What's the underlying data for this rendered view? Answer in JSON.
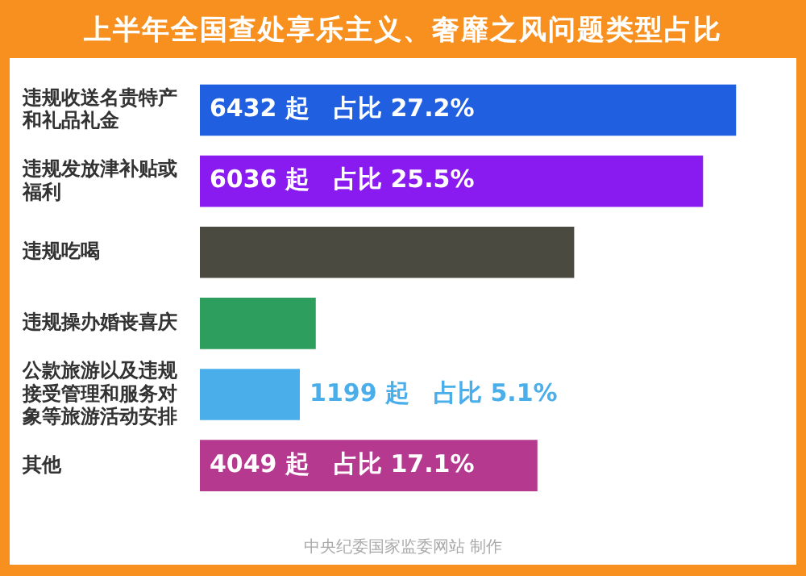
{
  "chart_data": {
    "type": "bar",
    "orientation": "horizontal",
    "title": "上半年全国查处享乐主义、奢靡之风问题类型占比",
    "categories": [
      "违规收送名贵特产和礼品礼金",
      "违规发放津补贴或福利",
      "违规吃喝",
      "违规操办婚丧喜庆",
      "公款旅游以及违规接受管理和服务对象等旅游活动安排",
      "其他"
    ],
    "values": [
      6432,
      6036,
      4490,
      1390,
      1199,
      4049
    ],
    "colors": [
      "#1f5fe0",
      "#8a1bf0",
      "#4a4a40",
      "#2e9e5e",
      "#4aaeea",
      "#b5398f"
    ],
    "value_labels": [
      "6432 起　占比 27.2%",
      "6036 起　占比 25.5%",
      null,
      null,
      "1199 起　占比 5.1%",
      "4049 起　占比 17.1%"
    ],
    "annotations": [
      "中央纪委国家监委网站 制作"
    ],
    "legend": false
  }
}
